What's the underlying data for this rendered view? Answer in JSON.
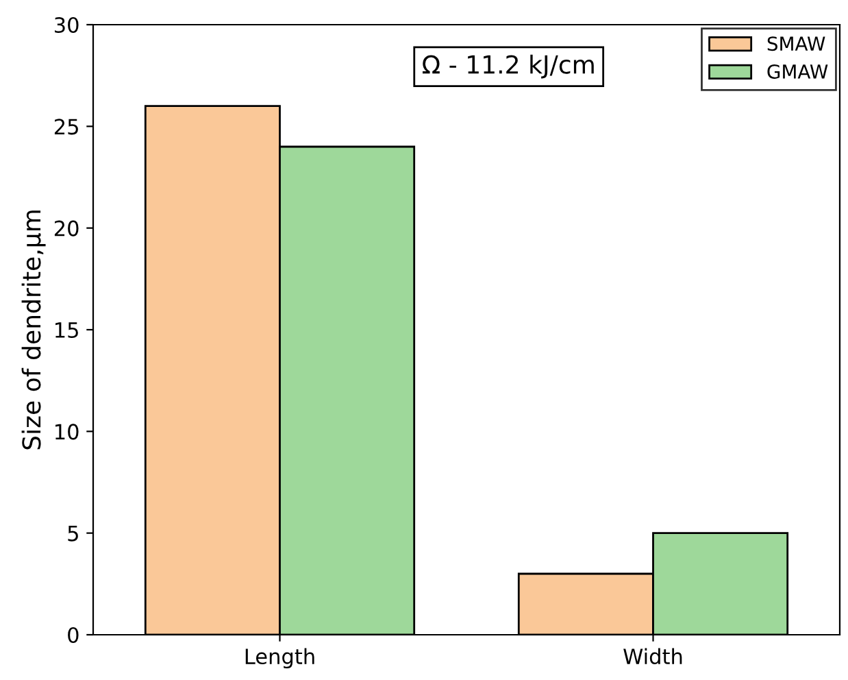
{
  "chart_data": {
    "type": "bar",
    "ylabel": "Size of dendrite,μm",
    "categories": [
      "Length",
      "Width"
    ],
    "series": [
      {
        "name": "SMAW",
        "color": "#fac898",
        "values": [
          26,
          3
        ]
      },
      {
        "name": "GMAW",
        "color": "#9ed89a",
        "values": [
          24,
          5
        ]
      }
    ],
    "ylim": [
      0,
      30
    ],
    "yticks": [
      0,
      5,
      10,
      15,
      20,
      25,
      30
    ],
    "annotations": [
      "Ω - 11.2 kJ/cm"
    ],
    "legend": "top right",
    "grid": false
  }
}
